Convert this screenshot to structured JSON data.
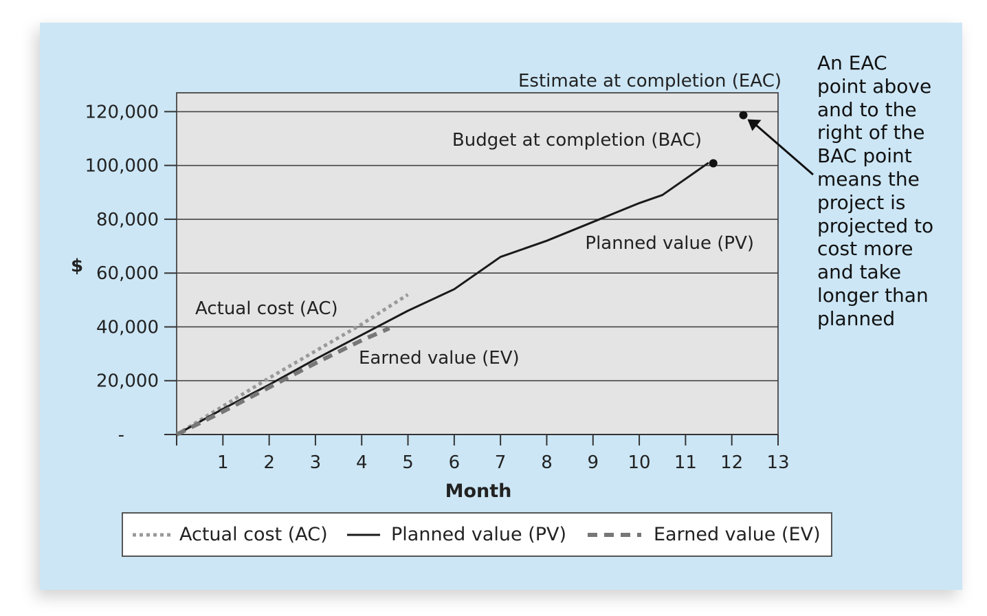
{
  "chart_data": {
    "type": "line",
    "title": "",
    "xlabel": "Month",
    "ylabel": "$",
    "xlim": [
      0,
      13
    ],
    "ylim": [
      0,
      127000
    ],
    "xticks": [
      1,
      2,
      3,
      4,
      5,
      6,
      7,
      8,
      9,
      10,
      11,
      12,
      13
    ],
    "yticks": [
      {
        "value": 0,
        "label": "-"
      },
      {
        "value": 20000,
        "label": "20,000"
      },
      {
        "value": 40000,
        "label": "40,000"
      },
      {
        "value": 60000,
        "label": "60,000"
      },
      {
        "value": 80000,
        "label": "80,000"
      },
      {
        "value": 100000,
        "label": "100,000"
      },
      {
        "value": 120000,
        "label": "120,000"
      }
    ],
    "grid": true,
    "series": [
      {
        "name": "Actual cost (AC)",
        "style": "dotted",
        "color": "#999999",
        "x": [
          0,
          1,
          2,
          3,
          4,
          4.5,
          5
        ],
        "y": [
          0,
          10500,
          21000,
          31000,
          41000,
          46500,
          52000
        ]
      },
      {
        "name": "Planned value (PV)",
        "style": "solid",
        "color": "#1a1a1a",
        "x": [
          0,
          1,
          2,
          3,
          4,
          5,
          6,
          7,
          8,
          9,
          10,
          10.5,
          11,
          11.5
        ],
        "y": [
          0,
          9500,
          18500,
          28000,
          37000,
          46000,
          54000,
          66000,
          72000,
          79000,
          86000,
          89000,
          95000,
          101000
        ]
      },
      {
        "name": "Earned value (EV)",
        "style": "dashed",
        "color": "#777777",
        "x": [
          0,
          1,
          2,
          3,
          4,
          4.6
        ],
        "y": [
          0,
          8500,
          17500,
          26500,
          35000,
          39500
        ]
      }
    ],
    "points": [
      {
        "name": "Budget at completion (BAC)",
        "x": 11.6,
        "y": 100800
      },
      {
        "name": "Estimate at completion (EAC)",
        "x": 12.25,
        "y": 118700
      }
    ],
    "annotations": {
      "eac": "Estimate at completion (EAC)",
      "bac": "Budget at completion (BAC)",
      "pv": "Planned value (PV)",
      "ac": "Actual cost (AC)",
      "ev": "Earned value (EV)"
    }
  },
  "legend": {
    "ac": "Actual cost (AC)",
    "pv": "Planned value (PV)",
    "ev": "Earned value (EV)"
  },
  "note_lines": [
    "An EAC",
    "point above",
    "and to the",
    "right of the",
    "BAC point",
    "means the",
    "project is",
    "projected to",
    "cost more",
    "and take",
    "longer than",
    "planned"
  ]
}
